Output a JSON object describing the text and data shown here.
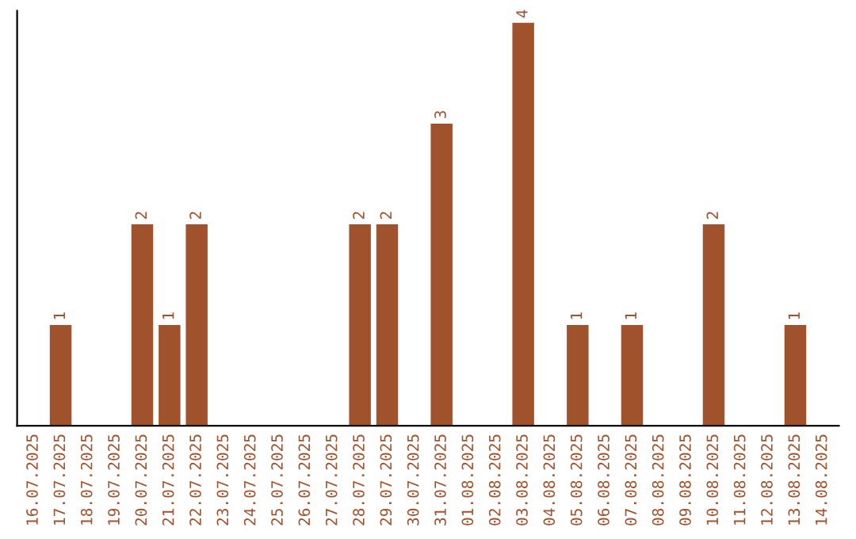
{
  "chart_data": {
    "type": "bar",
    "categories": [
      "16.07.2025",
      "17.07.2025",
      "18.07.2025",
      "19.07.2025",
      "20.07.2025",
      "21.07.2025",
      "22.07.2025",
      "23.07.2025",
      "24.07.2025",
      "25.07.2025",
      "26.07.2025",
      "27.07.2025",
      "28.07.2025",
      "29.07.2025",
      "30.07.2025",
      "31.07.2025",
      "01.08.2025",
      "02.08.2025",
      "03.08.2025",
      "04.08.2025",
      "05.08.2025",
      "06.08.2025",
      "07.08.2025",
      "08.08.2025",
      "09.08.2025",
      "10.08.2025",
      "11.08.2025",
      "12.08.2025",
      "13.08.2025",
      "14.08.2025"
    ],
    "values": [
      0,
      1,
      0,
      0,
      2,
      1,
      2,
      0,
      0,
      0,
      0,
      0,
      2,
      2,
      0,
      3,
      0,
      0,
      4,
      0,
      1,
      0,
      1,
      0,
      0,
      2,
      0,
      0,
      1,
      0
    ],
    "value_labels": [
      null,
      "1",
      null,
      null,
      "2",
      "1",
      "2",
      null,
      null,
      null,
      null,
      null,
      "2",
      "2",
      null,
      "3",
      null,
      null,
      "4",
      null,
      "1",
      null,
      "1",
      null,
      null,
      "2",
      null,
      null,
      "1",
      null
    ],
    "color": "#a0522d",
    "tick_labels": "x",
    "grid": false,
    "legend": false
  }
}
